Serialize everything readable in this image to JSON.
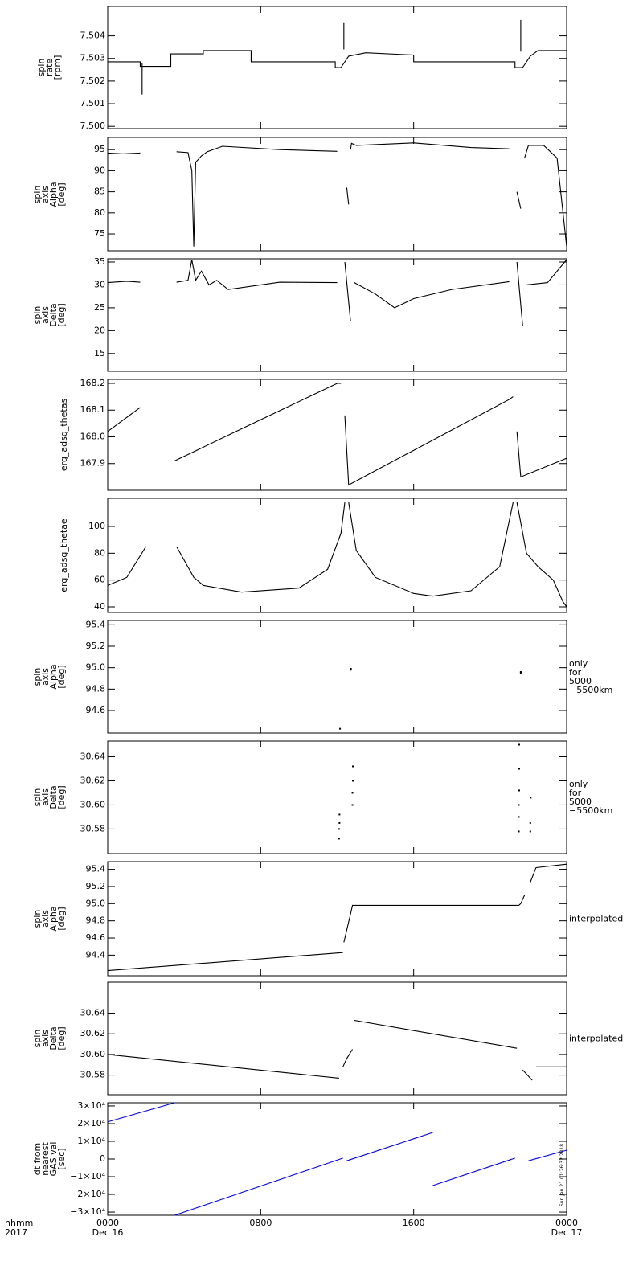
{
  "chart_data": [
    {
      "type": "line",
      "ylabel": "spin\nrate\n[rpm]",
      "color": "#000000",
      "xlim": [
        0,
        24
      ],
      "ylim": [
        7.4999,
        7.5053
      ],
      "yticks": [
        {
          "value": 7.5,
          "label": "7.500"
        },
        7.501,
        7.502,
        7.503,
        7.504
      ],
      "x": [
        0,
        1.7,
        1.7,
        3.3,
        3.3,
        5,
        5,
        7.5,
        7.5,
        11.9,
        11.9,
        12.2,
        12.6,
        13.5,
        16,
        16,
        21.3,
        21.3,
        21.7,
        22.1,
        22.5,
        24,
        24,
        1.8,
        1.8,
        1.8,
        12.35,
        12.35,
        12.35,
        21.6,
        21.6
      ],
      "values": [
        7.50285,
        7.50285,
        7.50265,
        7.50265,
        7.5032,
        7.5032,
        7.50335,
        7.50335,
        7.50285,
        7.50285,
        7.5026,
        7.5026,
        7.5031,
        7.50325,
        7.50315,
        7.50285,
        7.50285,
        7.5026,
        7.5026,
        7.5031,
        7.50335,
        7.50335,
        null,
        7.5028,
        7.5014,
        null,
        7.5034,
        7.5046,
        null,
        7.5033,
        7.5047
      ]
    },
    {
      "type": "line",
      "ylabel": "spin\naxis\nAlpha\n[deg]",
      "color": "#000000",
      "xlim": [
        0,
        24
      ],
      "ylim": [
        71,
        97.9
      ],
      "yticks": [
        75,
        80,
        85,
        90,
        95
      ],
      "x": [
        0,
        0.8,
        1.7,
        2.5,
        3.6,
        4.2,
        4.4,
        4.5,
        4.6,
        4.9,
        5.2,
        6,
        9,
        12,
        12.3,
        12.5,
        12.6,
        12.65,
        12.7,
        12.75,
        13,
        16,
        19,
        21,
        21.3,
        21.4,
        21.6,
        21.7,
        21.8,
        22,
        22.8,
        23.5,
        24
      ],
      "values": [
        94.2,
        94,
        94.2,
        null,
        94.5,
        94.3,
        90,
        72,
        92,
        93.5,
        94.5,
        95.8,
        95,
        94.6,
        null,
        86,
        82,
        null,
        95,
        96.5,
        96,
        96.6,
        95.5,
        95.2,
        null,
        85,
        81,
        null,
        93,
        96,
        96,
        93,
        72
      ]
    },
    {
      "type": "line",
      "ylabel": "spin\naxis\nDelta\n[deg]",
      "color": "#000000",
      "xlim": [
        0,
        24
      ],
      "ylim": [
        11.1,
        35.7
      ],
      "yticks": [
        15,
        20,
        25,
        30,
        35
      ],
      "x": [
        0,
        1,
        1.7,
        2.5,
        3.6,
        4.2,
        4.4,
        4.6,
        4.9,
        5.3,
        5.7,
        6.3,
        9,
        12,
        12.3,
        12.4,
        12.7,
        12.8,
        12.9,
        14,
        15,
        16,
        18,
        21,
        21.3,
        21.4,
        21.7,
        21.8,
        21.9,
        23,
        24
      ],
      "values": [
        30.5,
        30.8,
        30.6,
        null,
        30.6,
        31,
        35.5,
        31,
        33,
        30,
        31,
        29,
        30.6,
        30.5,
        null,
        35,
        22,
        null,
        30.5,
        28,
        25,
        27,
        29,
        30.7,
        null,
        35,
        21,
        null,
        30,
        30.5,
        35.5
      ]
    },
    {
      "type": "line",
      "ylabel": "erg_adsg_thetas",
      "color": "#000000",
      "xlim": [
        0,
        24
      ],
      "ylim": [
        167.8,
        168.215
      ],
      "yticks": [
        167.9,
        {
          "value": 168,
          "label": "168.0"
        },
        168.1,
        168.2
      ],
      "x": [
        0,
        1.7,
        2.5,
        3.5,
        7,
        12,
        12.2,
        12.3,
        12.4,
        12.6,
        21,
        21.2,
        21.3,
        21.4,
        21.6,
        24
      ],
      "values": [
        168.02,
        168.11,
        null,
        167.91,
        168.03,
        168.2,
        168.2,
        null,
        168.08,
        167.82,
        168.14,
        168.15,
        null,
        168.02,
        167.85,
        167.92
      ]
    },
    {
      "type": "line",
      "ylabel": "erg_adsg_thetae",
      "color": "#000000",
      "xlim": [
        0,
        24
      ],
      "ylim": [
        35.8,
        121
      ],
      "yticks": [
        40,
        60,
        80,
        100
      ],
      "x": [
        0,
        1,
        2,
        2.8,
        3.6,
        4.5,
        5,
        7,
        10,
        11.5,
        12.2,
        12.4,
        12.5,
        12.6,
        13,
        14,
        16,
        17,
        19,
        20.5,
        21.2,
        21.3,
        21.4,
        21.9,
        22.5,
        23.3,
        23.8,
        24
      ],
      "values": [
        56,
        62,
        85,
        null,
        85,
        62,
        56,
        51,
        54,
        68,
        95,
        118,
        null,
        118,
        82,
        62,
        50,
        48,
        52,
        70,
        118,
        null,
        118,
        80,
        70,
        60,
        44,
        40
      ]
    },
    {
      "type": "scatter",
      "ylabel": "spin\naxis\nAlpha\n[deg]",
      "note": "only\nfor\n5000\n−5500km",
      "color": "#000000",
      "xlim": [
        0,
        24
      ],
      "ylim": [
        94.39,
        95.44
      ],
      "yticks": [
        94.6,
        94.8,
        {
          "value": 95,
          "label": "95.0"
        },
        95.2,
        95.4
      ],
      "x": [
        12.7,
        12.72,
        21.6,
        21.6,
        12.15
      ],
      "values": [
        94.98,
        94.99,
        94.96,
        94.95,
        94.43
      ]
    },
    {
      "type": "scatter",
      "ylabel": "spin\naxis\nDelta\n[deg]",
      "note": "only\nfor\n5000\n−5500km",
      "color": "#000000",
      "xlim": [
        0,
        24
      ],
      "ylim": [
        30.5596,
        30.653
      ],
      "yticks": [
        30.58,
        {
          "value": 30.6,
          "label": "30.60"
        },
        30.62,
        30.64
      ],
      "x": [
        12.1,
        12.1,
        12.12,
        12.12,
        12.8,
        12.8,
        12.82,
        12.82,
        21.5,
        21.5,
        21.5,
        21.52,
        21.52,
        21.52,
        22.1,
        22.1,
        22.12
      ],
      "values": [
        30.572,
        30.58,
        30.585,
        30.592,
        30.6,
        30.61,
        30.62,
        30.632,
        30.578,
        30.59,
        30.6,
        30.612,
        30.63,
        30.65,
        30.578,
        30.585,
        30.606
      ]
    },
    {
      "type": "line",
      "ylabel": "spin\naxis\nAlpha\n[deg]",
      "note": "interpolated",
      "color": "#000000",
      "xlim": [
        0,
        24
      ],
      "ylim": [
        94.16,
        95.49
      ],
      "yticks": [
        94.4,
        94.6,
        94.8,
        {
          "value": 95,
          "label": "95.0"
        },
        95.2,
        95.4
      ],
      "x": [
        0,
        12.3,
        12.32,
        12.35,
        12.7,
        12.8,
        21.5,
        21.6,
        21.8,
        21.9,
        22.1,
        22.4,
        24
      ],
      "values": [
        94.22,
        94.43,
        null,
        94.55,
        94.88,
        94.98,
        94.98,
        95,
        95.1,
        null,
        95.25,
        95.42,
        95.46
      ]
    },
    {
      "type": "line",
      "ylabel": "spin\naxis\nDelta\n[deg]",
      "note": "interpolated",
      "color": "#000000",
      "xlim": [
        0,
        24
      ],
      "ylim": [
        30.561,
        30.67
      ],
      "yticks": [
        30.58,
        {
          "value": 30.6,
          "label": "30.60"
        },
        30.62,
        30.64
      ],
      "x": [
        0,
        12.1,
        12.2,
        12.3,
        12.5,
        12.8,
        12.85,
        12.9,
        21.4,
        21.5,
        21.7,
        22.2,
        22.3,
        22.4,
        24
      ],
      "values": [
        30.6,
        30.577,
        null,
        30.588,
        30.596,
        30.605,
        null,
        30.633,
        30.606,
        null,
        30.585,
        30.575,
        null,
        30.588,
        30.588
      ]
    },
    {
      "type": "line",
      "ylabel": "dt from\nnearest\nGAS val\n[sec]",
      "color": "#0000ff",
      "xlim": [
        0,
        24
      ],
      "ylim": [
        -31800,
        31800
      ],
      "yticks": [
        {
          "value": -30000,
          "label": "−3×10⁴"
        },
        {
          "value": -20000,
          "label": "−2×10⁴"
        },
        {
          "value": -10000,
          "label": "−1×10⁴"
        },
        0,
        {
          "value": 10000,
          "label": "1×10⁴"
        },
        {
          "value": 20000,
          "label": "2×10⁴"
        },
        {
          "value": 30000,
          "label": "3×10⁴"
        }
      ],
      "x": [
        0,
        3.5,
        3.5,
        3.5,
        12.3,
        12.4,
        12.5,
        17,
        17,
        17,
        21.3,
        21.6,
        22,
        24
      ],
      "values": [
        21000,
        31800,
        null,
        -31800,
        500,
        null,
        -1000,
        15000,
        null,
        -15000,
        500,
        null,
        -1000,
        5000
      ],
      "xticks": [
        {
          "value": 0,
          "label": "0000\nDec 16"
        },
        {
          "value": 8,
          "label": "0800"
        },
        {
          "value": 16,
          "label": "1600"
        },
        {
          "value": 24,
          "label": "0000\nDec 17"
        }
      ],
      "xlabel": "hhmm\n2017",
      "footnote": "Sun Jan 21 01:26:32 2018"
    }
  ]
}
